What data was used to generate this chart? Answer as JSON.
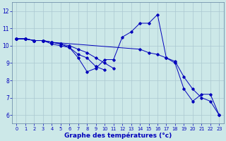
{
  "xlabel": "Graphe des températures (°c)",
  "xlim": [
    -0.5,
    23.5
  ],
  "ylim": [
    5.5,
    12.5
  ],
  "yticks": [
    6,
    7,
    8,
    9,
    10,
    11,
    12
  ],
  "xticks": [
    0,
    1,
    2,
    3,
    4,
    5,
    6,
    7,
    8,
    9,
    10,
    11,
    12,
    13,
    14,
    15,
    16,
    17,
    18,
    19,
    20,
    21,
    22,
    23
  ],
  "bg_color": "#cce8e8",
  "line_color": "#0000bb",
  "grid_color": "#aac8d0",
  "series": [
    {
      "x": [
        0,
        1,
        2,
        3,
        4,
        14,
        15,
        16,
        17,
        18,
        19,
        20,
        21,
        22,
        23
      ],
      "y": [
        10.4,
        10.4,
        10.3,
        10.3,
        10.2,
        9.8,
        9.6,
        9.5,
        9.3,
        9.1,
        8.2,
        7.5,
        7.0,
        6.8,
        6.0
      ]
    },
    {
      "x": [
        0,
        1,
        2,
        3,
        4,
        5,
        6,
        7,
        8,
        9,
        10,
        11,
        12,
        13,
        14,
        15,
        16,
        17,
        18,
        19,
        20,
        21,
        22,
        23
      ],
      "y": [
        10.4,
        10.4,
        10.3,
        10.3,
        10.2,
        10.1,
        9.9,
        9.3,
        8.5,
        8.7,
        9.2,
        9.2,
        10.5,
        10.8,
        11.3,
        11.3,
        11.8,
        9.3,
        9.0,
        7.5,
        6.8,
        7.2,
        7.2,
        6.0
      ]
    },
    {
      "x": [
        0,
        1,
        2,
        3,
        4,
        5,
        6,
        7,
        8,
        9,
        10
      ],
      "y": [
        10.4,
        10.4,
        10.3,
        10.3,
        10.1,
        10.0,
        9.9,
        9.5,
        9.3,
        8.8,
        8.6
      ]
    },
    {
      "x": [
        0,
        1,
        2,
        3,
        4,
        5,
        6,
        7,
        8,
        9,
        10,
        11
      ],
      "y": [
        10.4,
        10.4,
        10.3,
        10.3,
        10.2,
        10.1,
        10.0,
        9.8,
        9.6,
        9.3,
        9.0,
        8.7
      ]
    }
  ]
}
